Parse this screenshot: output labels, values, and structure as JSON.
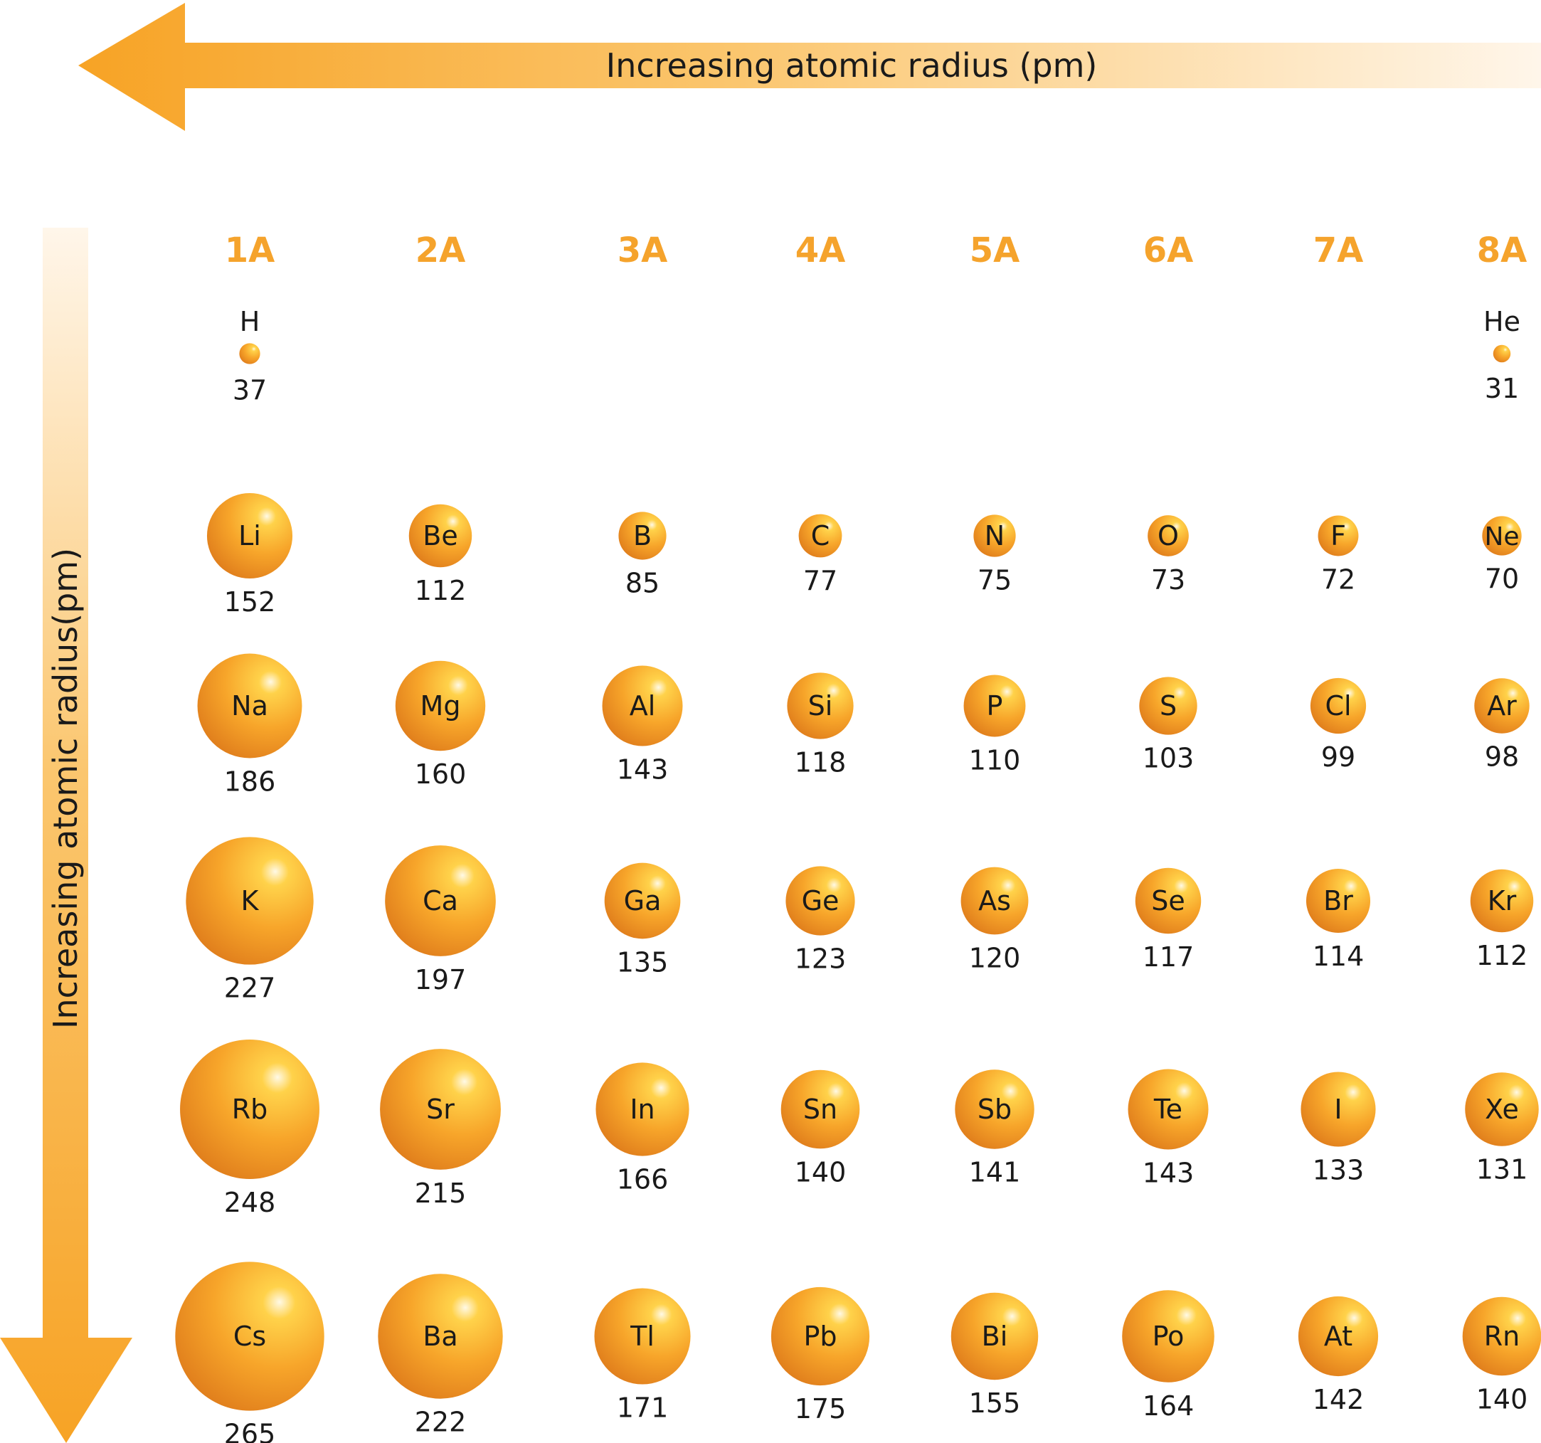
{
  "horizontal_arrow": {
    "label": "Increasing atomic radius (pm)"
  },
  "vertical_arrow": {
    "label": "Increasing atomic radius(pm)"
  },
  "groups": [
    "1A",
    "2A",
    "3A",
    "4A",
    "5A",
    "6A",
    "7A",
    "8A"
  ],
  "elements": [
    {
      "symbol": "H",
      "radius": "37",
      "group": 0,
      "period": 0
    },
    {
      "symbol": "He",
      "radius": "31",
      "group": 7,
      "period": 0
    },
    {
      "symbol": "Li",
      "radius": "152",
      "group": 0,
      "period": 1
    },
    {
      "symbol": "Be",
      "radius": "112",
      "group": 1,
      "period": 1
    },
    {
      "symbol": "B",
      "radius": "85",
      "group": 2,
      "period": 1
    },
    {
      "symbol": "C",
      "radius": "77",
      "group": 3,
      "period": 1
    },
    {
      "symbol": "N",
      "radius": "75",
      "group": 4,
      "period": 1
    },
    {
      "symbol": "O",
      "radius": "73",
      "group": 5,
      "period": 1
    },
    {
      "symbol": "F",
      "radius": "72",
      "group": 6,
      "period": 1
    },
    {
      "symbol": "Ne",
      "radius": "70",
      "group": 7,
      "period": 1
    },
    {
      "symbol": "Na",
      "radius": "186",
      "group": 0,
      "period": 2
    },
    {
      "symbol": "Mg",
      "radius": "160",
      "group": 1,
      "period": 2
    },
    {
      "symbol": "Al",
      "radius": "143",
      "group": 2,
      "period": 2
    },
    {
      "symbol": "Si",
      "radius": "118",
      "group": 3,
      "period": 2
    },
    {
      "symbol": "P",
      "radius": "110",
      "group": 4,
      "period": 2
    },
    {
      "symbol": "S",
      "radius": "103",
      "group": 5,
      "period": 2
    },
    {
      "symbol": "Cl",
      "radius": "99",
      "group": 6,
      "period": 2
    },
    {
      "symbol": "Ar",
      "radius": "98",
      "group": 7,
      "period": 2
    },
    {
      "symbol": "K",
      "radius": "227",
      "group": 0,
      "period": 3
    },
    {
      "symbol": "Ca",
      "radius": "197",
      "group": 1,
      "period": 3
    },
    {
      "symbol": "Ga",
      "radius": "135",
      "group": 2,
      "period": 3
    },
    {
      "symbol": "Ge",
      "radius": "123",
      "group": 3,
      "period": 3
    },
    {
      "symbol": "As",
      "radius": "120",
      "group": 4,
      "period": 3
    },
    {
      "symbol": "Se",
      "radius": "117",
      "group": 5,
      "period": 3
    },
    {
      "symbol": "Br",
      "radius": "114",
      "group": 6,
      "period": 3
    },
    {
      "symbol": "Kr",
      "radius": "112",
      "group": 7,
      "period": 3
    },
    {
      "symbol": "Rb",
      "radius": "248",
      "group": 0,
      "period": 4
    },
    {
      "symbol": "Sr",
      "radius": "215",
      "group": 1,
      "period": 4
    },
    {
      "symbol": "In",
      "radius": "166",
      "group": 2,
      "period": 4
    },
    {
      "symbol": "Sn",
      "radius": "140",
      "group": 3,
      "period": 4
    },
    {
      "symbol": "Sb",
      "radius": "141",
      "group": 4,
      "period": 4
    },
    {
      "symbol": "Te",
      "radius": "143",
      "group": 5,
      "period": 4
    },
    {
      "symbol": "I",
      "radius": "133",
      "group": 6,
      "period": 4
    },
    {
      "symbol": "Xe",
      "radius": "131",
      "group": 7,
      "period": 4
    },
    {
      "symbol": "Cs",
      "radius": "265",
      "group": 0,
      "period": 5
    },
    {
      "symbol": "Ba",
      "radius": "222",
      "group": 1,
      "period": 5
    },
    {
      "symbol": "Tl",
      "radius": "171",
      "group": 2,
      "period": 5
    },
    {
      "symbol": "Pb",
      "radius": "175",
      "group": 3,
      "period": 5
    },
    {
      "symbol": "Bi",
      "radius": "155",
      "group": 4,
      "period": 5
    },
    {
      "symbol": "Po",
      "radius": "164",
      "group": 5,
      "period": 5
    },
    {
      "symbol": "At",
      "radius": "142",
      "group": 6,
      "period": 5
    },
    {
      "symbol": "Rn",
      "radius": "140",
      "group": 7,
      "period": 5
    }
  ],
  "colors": {
    "accent": "#f5a32c",
    "sphere_highlight": "#fff9e6",
    "sphere_light": "#ffc93c",
    "sphere_mid": "#f5a028",
    "sphere_dark": "#e07e1c",
    "text": "#1a1a1a"
  }
}
